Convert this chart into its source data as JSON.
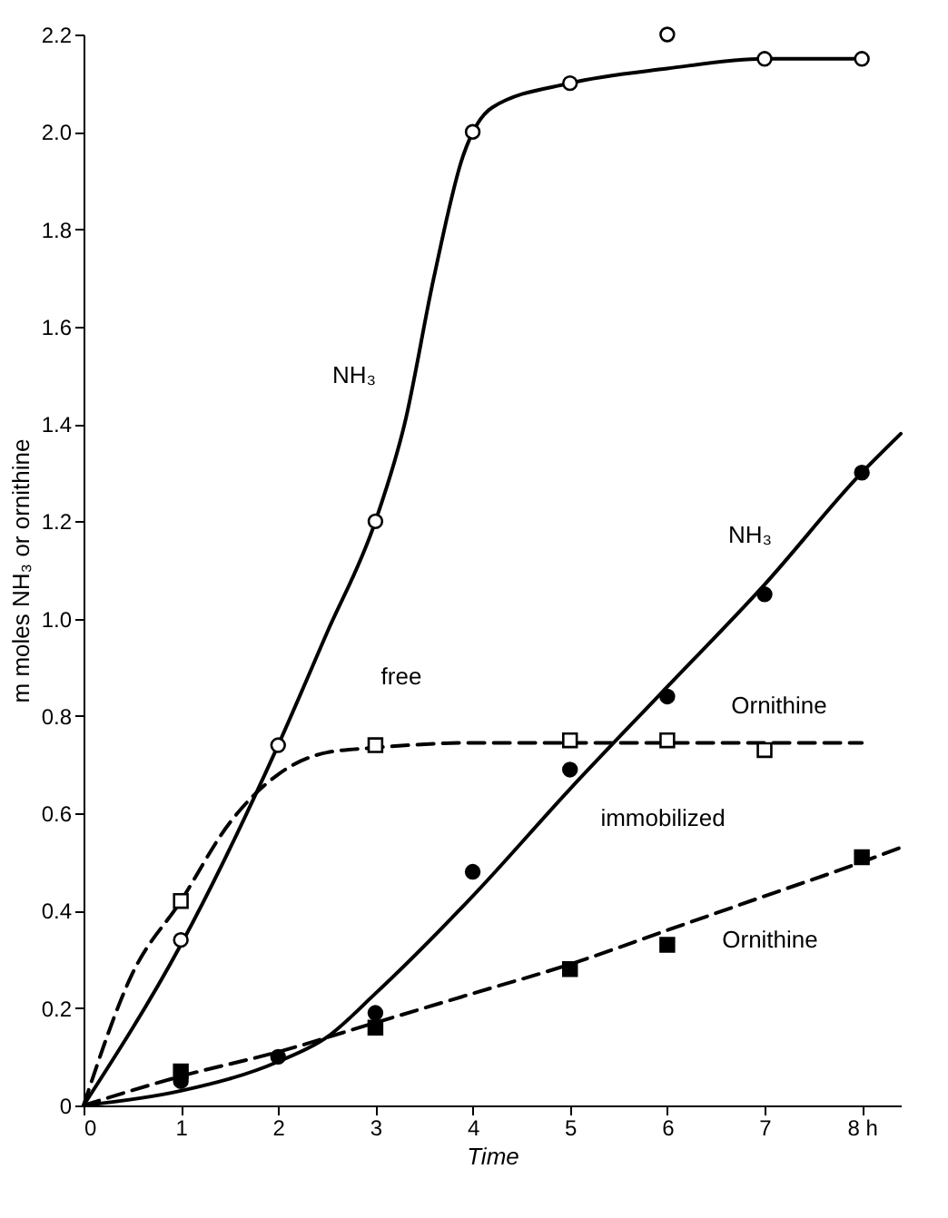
{
  "chart_data": {
    "type": "line",
    "xlabel": "Time",
    "ylabel": "m moles NH₃ or ornithine",
    "xlim": [
      0,
      8.4
    ],
    "xticks": [
      0,
      1,
      2,
      3,
      4,
      5,
      6,
      7,
      {
        "value": 8,
        "label": "8 h"
      }
    ],
    "ylim": [
      0,
      2.2
    ],
    "yticks": [
      0,
      0.2,
      0.4,
      0.6,
      0.8,
      {
        "value": 1,
        "label": "1.0"
      },
      1.2,
      1.4,
      1.6,
      1.8,
      {
        "value": 2,
        "label": "2.0"
      },
      2.2
    ],
    "grid": false,
    "series": [
      {
        "line_style": "solid",
        "marker": "none",
        "color": "#000000",
        "x": [
          0,
          1,
          2,
          2.5,
          3,
          3.3,
          3.6,
          3.9,
          4.2,
          5,
          6,
          7,
          8
        ],
        "values": [
          0,
          0.33,
          0.74,
          0.97,
          1.2,
          1.4,
          1.7,
          1.95,
          2.05,
          2.1,
          2.13,
          2.15,
          2.15
        ]
      },
      {
        "line_style": "dashed",
        "marker": "none",
        "color": "#000000",
        "x": [
          0,
          0.5,
          1,
          1.5,
          2,
          2.5,
          3,
          4,
          8
        ],
        "values": [
          0,
          0.27,
          0.42,
          0.58,
          0.68,
          0.725,
          0.735,
          0.745,
          0.745
        ]
      },
      {
        "line_style": "solid",
        "marker": "none",
        "color": "#000000",
        "x": [
          0,
          1,
          2,
          2.5,
          3,
          4,
          5,
          6,
          7,
          8,
          8.4
        ],
        "values": [
          0,
          0.03,
          0.09,
          0.14,
          0.23,
          0.43,
          0.65,
          0.86,
          1.07,
          1.3,
          1.38
        ]
      },
      {
        "line_style": "dashed",
        "marker": "none",
        "color": "#000000",
        "x": [
          0,
          1,
          2,
          3,
          4,
          5,
          6,
          7,
          8,
          8.4
        ],
        "values": [
          0,
          0.06,
          0.11,
          0.17,
          0.23,
          0.29,
          0.36,
          0.43,
          0.5,
          0.53
        ]
      },
      {
        "type": "scatter",
        "marker": "circle",
        "color": "#ffffff",
        "x": [
          1,
          2,
          3,
          4,
          5,
          6,
          7,
          8
        ],
        "values": [
          0.34,
          0.74,
          1.2,
          2.0,
          2.1,
          2.2,
          2.15,
          2.15
        ]
      },
      {
        "type": "scatter",
        "marker": "square",
        "color": "#ffffff",
        "x": [
          1,
          3,
          5,
          6,
          7
        ],
        "values": [
          0.42,
          0.74,
          0.75,
          0.75,
          0.73
        ]
      },
      {
        "type": "scatter",
        "marker": "circle",
        "color": "#000000",
        "x": [
          1,
          2,
          3,
          4,
          5,
          6,
          7,
          8
        ],
        "values": [
          0.05,
          0.1,
          0.19,
          0.48,
          0.69,
          0.84,
          1.05,
          1.3
        ]
      },
      {
        "type": "scatter",
        "marker": "square",
        "color": "#000000",
        "x": [
          1,
          3,
          5,
          6,
          8
        ],
        "values": [
          0.07,
          0.16,
          0.28,
          0.33,
          0.51
        ]
      }
    ],
    "annotations": [
      "NH₃",
      "free",
      "Ornithine",
      "NH₃",
      "immobilized",
      "Ornithine"
    ]
  }
}
